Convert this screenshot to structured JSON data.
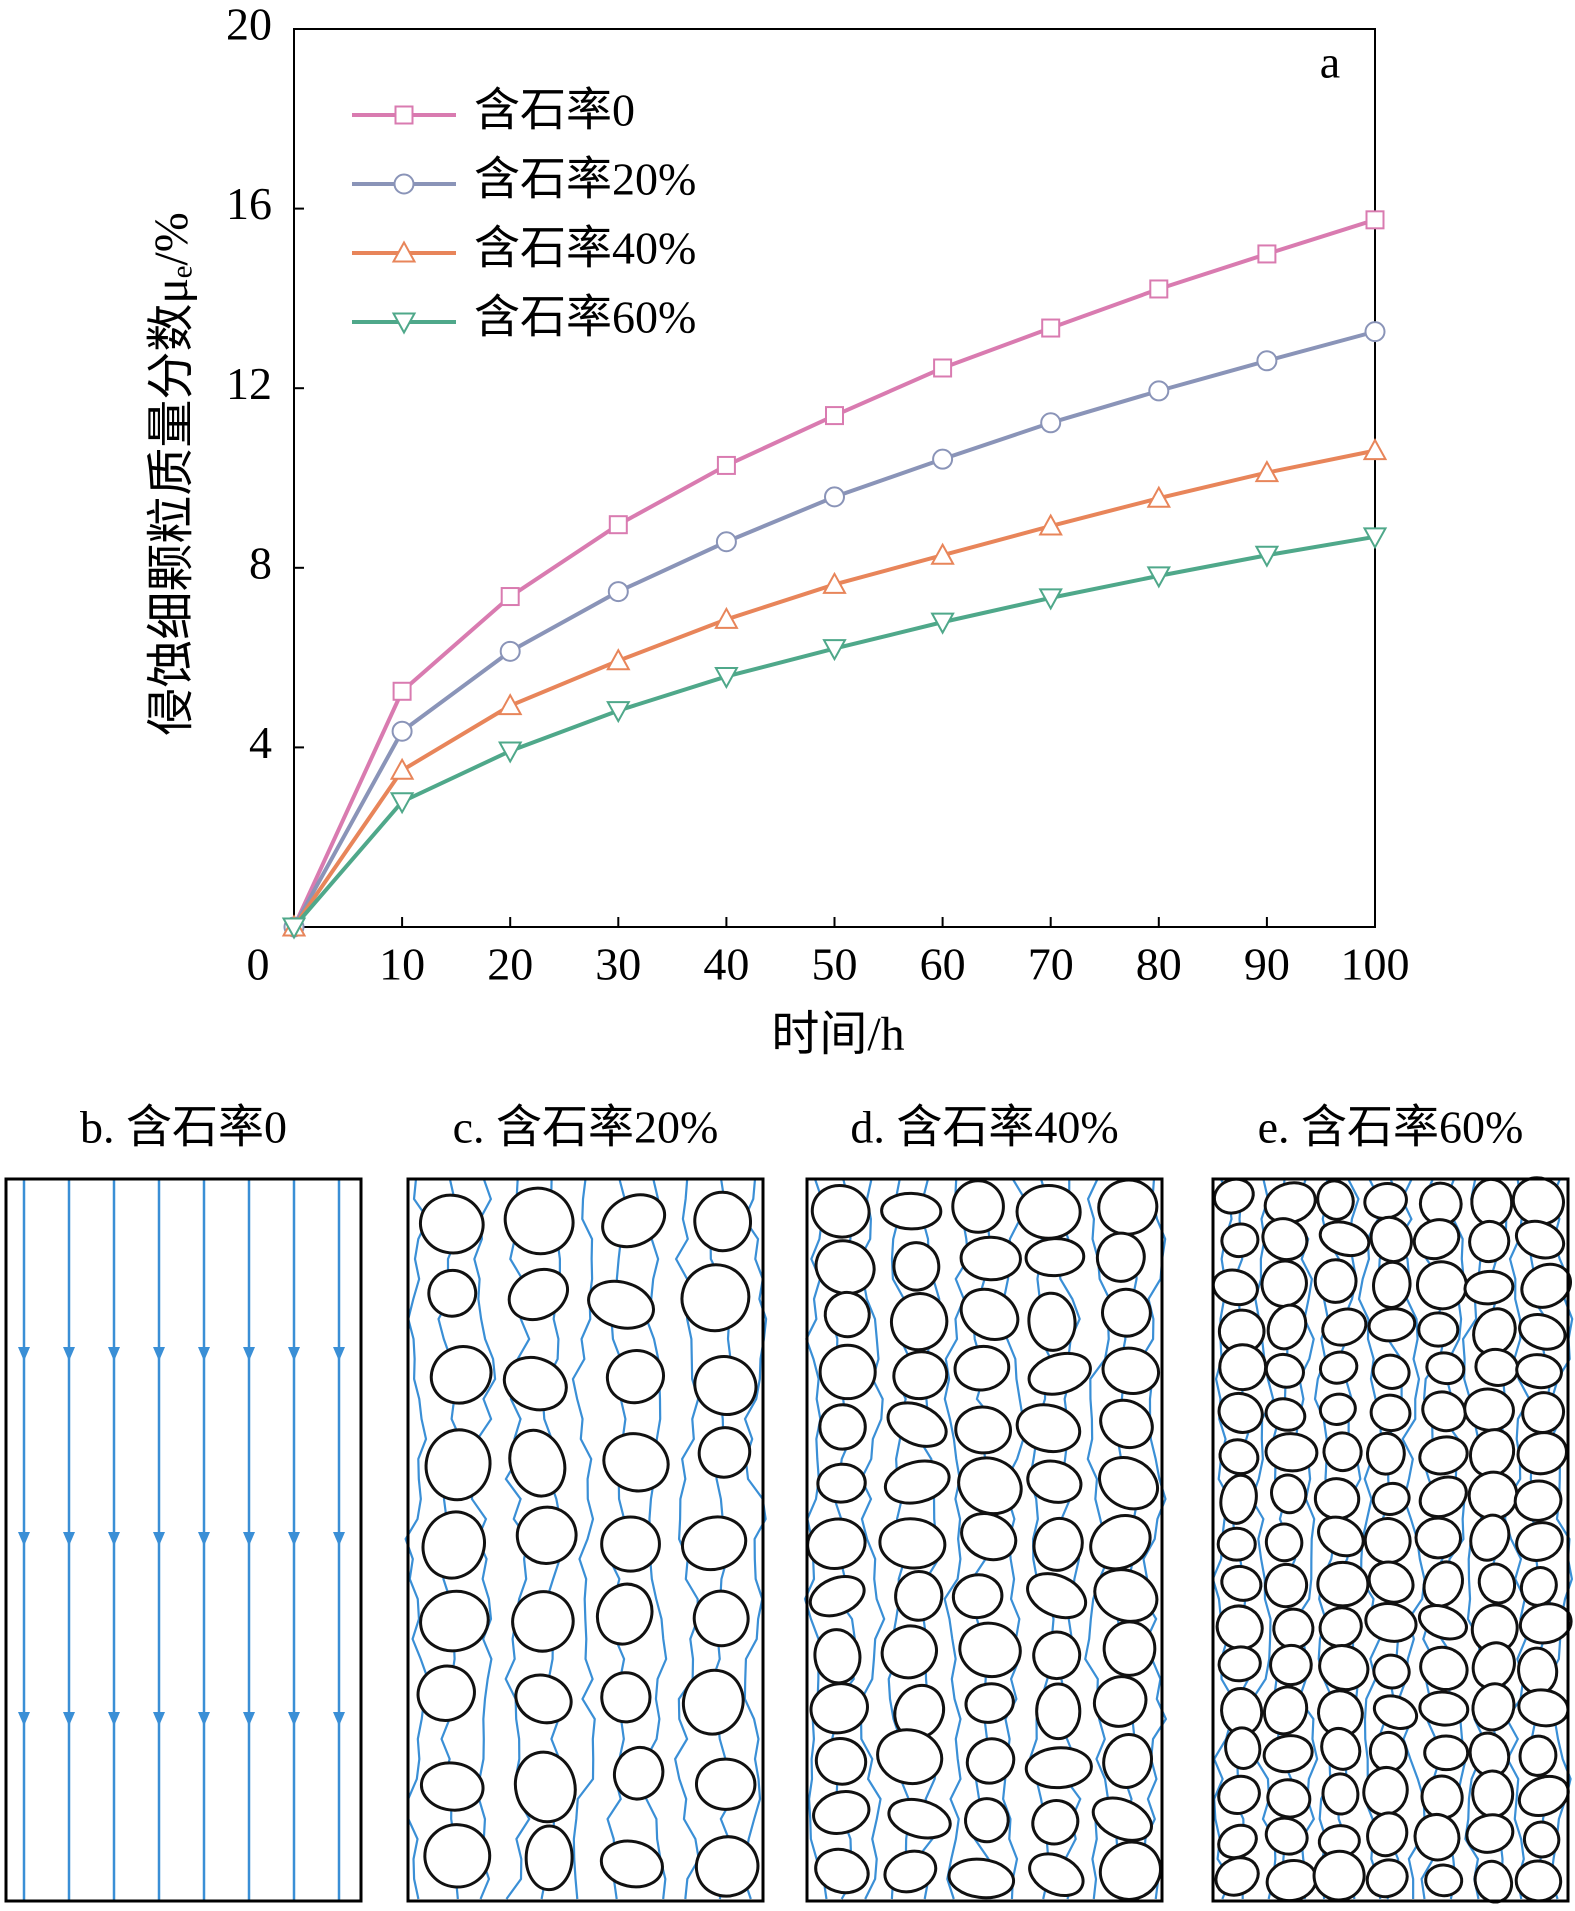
{
  "chart_data": {
    "type": "line",
    "x_label": "时间/h",
    "y_label": "侵蚀细颗粒质量分数μₑ/%",
    "annotation": "a",
    "x": [
      0,
      10,
      20,
      30,
      40,
      50,
      60,
      70,
      80,
      90,
      100
    ],
    "xlim": [
      0,
      100
    ],
    "xticks": [
      0,
      10,
      20,
      30,
      40,
      50,
      60,
      70,
      80,
      90,
      100
    ],
    "ylim": [
      0,
      20
    ],
    "yticks": [
      4,
      8,
      12,
      16,
      20
    ],
    "legend": "upper left",
    "series": [
      {
        "name": "含石率0",
        "color": "#d97bb0",
        "marker": "square",
        "values": [
          0,
          5.25,
          7.36,
          8.96,
          10.28,
          11.39,
          12.45,
          13.34,
          14.21,
          14.99,
          15.75
        ]
      },
      {
        "name": "含石率20%",
        "color": "#8a94b8",
        "marker": "circle",
        "values": [
          0,
          4.36,
          6.14,
          7.47,
          8.58,
          9.58,
          10.42,
          11.23,
          11.94,
          12.61,
          13.26
        ]
      },
      {
        "name": "含石率40%",
        "color": "#e8855a",
        "marker": "triangle-up",
        "values": [
          0,
          3.49,
          4.93,
          5.93,
          6.85,
          7.63,
          8.28,
          8.93,
          9.55,
          10.12,
          10.61
        ]
      },
      {
        "name": "含石率60%",
        "color": "#4fa88a",
        "marker": "triangle-down",
        "values": [
          0,
          2.79,
          3.92,
          4.82,
          5.58,
          6.2,
          6.79,
          7.33,
          7.82,
          8.28,
          8.69
        ]
      }
    ]
  },
  "panels": [
    {
      "caption": "b. 含石率0"
    },
    {
      "caption": "c. 含石率20%"
    },
    {
      "caption": "d. 含石率40%"
    },
    {
      "caption": "e. 含石率60%"
    }
  ]
}
